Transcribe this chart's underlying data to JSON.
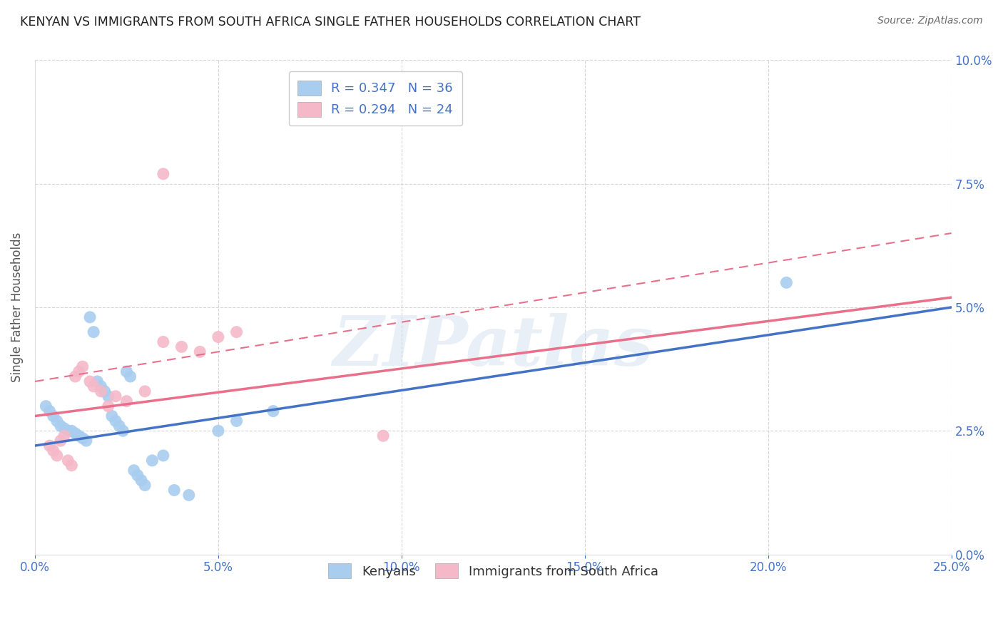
{
  "title": "KENYAN VS IMMIGRANTS FROM SOUTH AFRICA SINGLE FATHER HOUSEHOLDS CORRELATION CHART",
  "source": "Source: ZipAtlas.com",
  "ylabel": "Single Father Households",
  "xmin": 0.0,
  "xmax": 25.0,
  "ymin": 0.0,
  "ymax": 10.0,
  "xlabel_ticks": [
    0.0,
    5.0,
    10.0,
    15.0,
    20.0,
    25.0
  ],
  "ylabel_ticks": [
    0.0,
    2.5,
    5.0,
    7.5,
    10.0
  ],
  "blue_R": 0.347,
  "blue_N": 36,
  "pink_R": 0.294,
  "pink_N": 24,
  "blue_color": "#A8CDEF",
  "pink_color": "#F5B8C8",
  "blue_line_color": "#4472C4",
  "pink_line_color": "#E8708A",
  "grid_color": "#CCCCCC",
  "title_color": "#222222",
  "axis_label_color": "#4472C4",
  "blue_scatter_x": [
    0.3,
    0.4,
    0.5,
    0.6,
    0.7,
    0.8,
    0.9,
    1.0,
    1.1,
    1.2,
    1.3,
    1.4,
    1.5,
    1.6,
    1.7,
    1.8,
    1.9,
    2.0,
    2.1,
    2.2,
    2.3,
    2.4,
    2.5,
    2.6,
    2.7,
    2.8,
    2.9,
    3.0,
    3.2,
    3.5,
    3.8,
    4.2,
    5.0,
    5.5,
    6.5,
    20.5
  ],
  "blue_scatter_y": [
    3.0,
    2.9,
    2.8,
    2.7,
    2.6,
    2.55,
    2.5,
    2.5,
    2.45,
    2.4,
    2.35,
    2.3,
    4.8,
    4.5,
    3.5,
    3.4,
    3.3,
    3.2,
    2.8,
    2.7,
    2.6,
    2.5,
    3.7,
    3.6,
    1.7,
    1.6,
    1.5,
    1.4,
    1.9,
    2.0,
    1.3,
    1.2,
    2.5,
    2.7,
    2.9,
    5.5
  ],
  "pink_scatter_x": [
    0.4,
    0.5,
    0.6,
    0.7,
    0.8,
    0.9,
    1.0,
    1.1,
    1.2,
    1.3,
    1.5,
    1.6,
    1.8,
    2.0,
    2.2,
    2.5,
    3.0,
    3.5,
    4.0,
    4.5,
    5.0,
    5.5,
    3.5,
    9.5
  ],
  "pink_scatter_y": [
    2.2,
    2.1,
    2.0,
    2.3,
    2.4,
    1.9,
    1.8,
    3.6,
    3.7,
    3.8,
    3.5,
    3.4,
    3.3,
    3.0,
    3.2,
    3.1,
    3.3,
    4.3,
    4.2,
    4.1,
    4.4,
    4.5,
    7.7,
    2.4
  ],
  "blue_trend_x0": 0.0,
  "blue_trend_x1": 25.0,
  "blue_trend_y0": 2.2,
  "blue_trend_y1": 5.0,
  "pink_trend_x0": 0.0,
  "pink_trend_x1": 25.0,
  "pink_trend_y0": 2.8,
  "pink_trend_y1": 5.2,
  "pink_dash_x0": 0.0,
  "pink_dash_x1": 25.0,
  "pink_dash_y0": 3.5,
  "pink_dash_y1": 6.5,
  "watermark": "ZIPatlas"
}
